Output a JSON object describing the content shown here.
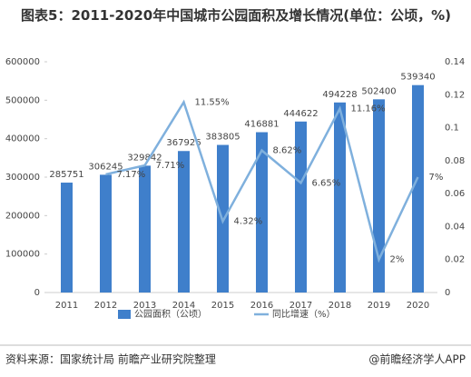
{
  "chart_data": {
    "type": "bar",
    "title": "图表5：2011-2020年中国城市公园面积及增长情况(单位：公顷，%)",
    "categories": [
      "2011",
      "2012",
      "2013",
      "2014",
      "2015",
      "2016",
      "2017",
      "2018",
      "2019",
      "2020"
    ],
    "series": [
      {
        "name": "公园面积（公顷）",
        "type": "bar",
        "color": "#3f7fcb",
        "values": [
          285751,
          306245,
          329842,
          367926,
          383805,
          416881,
          444622,
          494228,
          502400,
          539340
        ]
      },
      {
        "name": "同比增速（%）",
        "type": "line",
        "axis": "y2",
        "color": "#7fb0dd",
        "values": [
          null,
          0.0717,
          0.0771,
          0.1155,
          0.0432,
          0.0862,
          0.0665,
          0.1116,
          0.02,
          0.07
        ],
        "value_labels": [
          null,
          "7.17%",
          "7.71%",
          "11.55%",
          "4.32%",
          "8.62%",
          "6.65%",
          "11.16%",
          "2%",
          "7%"
        ]
      }
    ],
    "ylim": [
      0,
      600000
    ],
    "yticks": [
      0,
      100000,
      200000,
      300000,
      400000,
      500000,
      600000
    ],
    "y2lim": [
      0,
      0.14
    ],
    "y2ticks": [
      0,
      0.02,
      0.04,
      0.06,
      0.08,
      0.1,
      0.12,
      0.14
    ],
    "source": "资料来源：国家统计局 前瞻产业研究院整理",
    "credit": "@前瞻经济学人APP"
  }
}
